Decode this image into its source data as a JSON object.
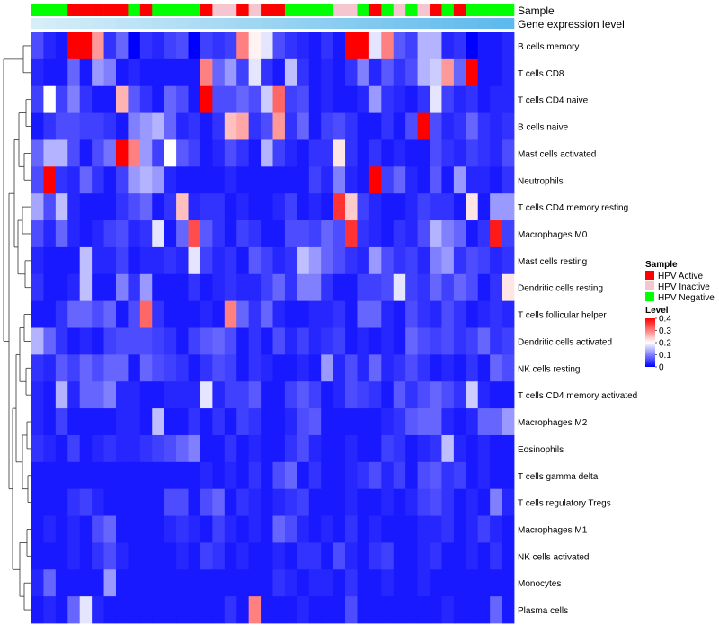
{
  "chart_data": {
    "type": "heatmap",
    "annotation_labels": {
      "sample": "Sample",
      "expression": "Gene expression level"
    },
    "sample_annotation": [
      "N",
      "N",
      "N",
      "A",
      "A",
      "A",
      "A",
      "A",
      "N",
      "A",
      "N",
      "N",
      "N",
      "N",
      "A",
      "I",
      "I",
      "A",
      "I",
      "A",
      "A",
      "N",
      "N",
      "N",
      "N",
      "I",
      "I",
      "N",
      "A",
      "N",
      "I",
      "N",
      "I",
      "A",
      "N",
      "A",
      "N",
      "N",
      "N",
      "N"
    ],
    "rows": [
      "B cells memory",
      "T cells CD8",
      "T cells CD4 naive",
      "B cells naive",
      "Mast cells activated",
      "Neutrophils",
      "T cells CD4 memory resting",
      "Macrophages M0",
      "Mast cells resting",
      "Dendritic cells resting",
      "T cells follicular helper",
      "Dendritic cells activated",
      "NK cells resting",
      "T cells CD4 memory activated",
      "Macrophages M2",
      "Eosinophils",
      "T cells gamma delta",
      "T cells regulatory  Tregs",
      "Macrophages M1",
      "NK cells activated",
      "Monocytes",
      "Plasma cells"
    ],
    "values": [
      [
        0.06,
        0.03,
        0.02,
        0.4,
        0.4,
        0.28,
        0.04,
        0.08,
        0.0,
        0.04,
        0.03,
        0.05,
        0.06,
        0.0,
        0.05,
        0.04,
        0.05,
        0.3,
        0.21,
        0.18,
        0.06,
        0.04,
        0.03,
        0.02,
        0.04,
        0.02,
        0.4,
        0.4,
        0.18,
        0.3,
        0.07,
        0.05,
        0.14,
        0.14,
        0.03,
        0.04,
        0.0,
        0.02,
        0.02,
        0.03
      ],
      [
        0.03,
        0.02,
        0.02,
        0.08,
        0.02,
        0.12,
        0.1,
        0.02,
        0.03,
        0.02,
        0.02,
        0.02,
        0.02,
        0.02,
        0.3,
        0.08,
        0.12,
        0.05,
        0.18,
        0.04,
        0.02,
        0.15,
        0.04,
        0.02,
        0.03,
        0.02,
        0.04,
        0.1,
        0.03,
        0.07,
        0.04,
        0.06,
        0.14,
        0.16,
        0.28,
        0.08,
        0.4,
        0.02,
        0.02,
        0.03
      ],
      [
        0.05,
        0.2,
        0.05,
        0.1,
        0.04,
        0.02,
        0.02,
        0.26,
        0.07,
        0.04,
        0.02,
        0.08,
        0.06,
        0.02,
        0.4,
        0.06,
        0.06,
        0.08,
        0.06,
        0.16,
        0.32,
        0.05,
        0.06,
        0.02,
        0.03,
        0.02,
        0.02,
        0.03,
        0.12,
        0.04,
        0.03,
        0.02,
        0.04,
        0.18,
        0.05,
        0.03,
        0.04,
        0.02,
        0.03,
        0.03
      ],
      [
        0.02,
        0.04,
        0.06,
        0.06,
        0.05,
        0.05,
        0.04,
        0.02,
        0.1,
        0.12,
        0.14,
        0.08,
        0.03,
        0.04,
        0.02,
        0.04,
        0.25,
        0.27,
        0.04,
        0.06,
        0.28,
        0.04,
        0.08,
        0.02,
        0.05,
        0.06,
        0.04,
        0.02,
        0.02,
        0.04,
        0.02,
        0.06,
        0.4,
        0.06,
        0.03,
        0.04,
        0.08,
        0.04,
        0.03,
        0.04
      ],
      [
        0.08,
        0.14,
        0.14,
        0.06,
        0.02,
        0.06,
        0.09,
        0.4,
        0.3,
        0.12,
        0.05,
        0.2,
        0.07,
        0.05,
        0.02,
        0.03,
        0.06,
        0.04,
        0.02,
        0.14,
        0.05,
        0.03,
        0.02,
        0.04,
        0.04,
        0.22,
        0.04,
        0.02,
        0.04,
        0.02,
        0.03,
        0.02,
        0.02,
        0.06,
        0.04,
        0.03,
        0.05,
        0.04,
        0.03,
        0.06
      ],
      [
        0.06,
        0.4,
        0.04,
        0.03,
        0.08,
        0.04,
        0.02,
        0.05,
        0.12,
        0.14,
        0.12,
        0.03,
        0.02,
        0.02,
        0.02,
        0.02,
        0.03,
        0.02,
        0.02,
        0.02,
        0.02,
        0.02,
        0.02,
        0.05,
        0.03,
        0.1,
        0.03,
        0.02,
        0.4,
        0.05,
        0.08,
        0.03,
        0.02,
        0.07,
        0.02,
        0.12,
        0.03,
        0.03,
        0.02,
        0.04
      ],
      [
        0.13,
        0.06,
        0.15,
        0.03,
        0.02,
        0.02,
        0.02,
        0.04,
        0.06,
        0.08,
        0.02,
        0.04,
        0.25,
        0.03,
        0.04,
        0.04,
        0.02,
        0.03,
        0.02,
        0.02,
        0.03,
        0.05,
        0.02,
        0.03,
        0.02,
        0.36,
        0.24,
        0.05,
        0.03,
        0.02,
        0.02,
        0.03,
        0.05,
        0.04,
        0.04,
        0.02,
        0.22,
        0.02,
        0.12,
        0.12
      ],
      [
        0.06,
        0.03,
        0.08,
        0.03,
        0.02,
        0.03,
        0.05,
        0.06,
        0.03,
        0.04,
        0.18,
        0.02,
        0.08,
        0.34,
        0.07,
        0.04,
        0.02,
        0.05,
        0.04,
        0.02,
        0.02,
        0.06,
        0.06,
        0.05,
        0.08,
        0.06,
        0.36,
        0.04,
        0.03,
        0.02,
        0.04,
        0.03,
        0.06,
        0.14,
        0.1,
        0.08,
        0.02,
        0.04,
        0.38,
        0.05
      ],
      [
        0.03,
        0.02,
        0.02,
        0.02,
        0.15,
        0.03,
        0.03,
        0.05,
        0.02,
        0.03,
        0.03,
        0.04,
        0.03,
        0.18,
        0.05,
        0.03,
        0.04,
        0.02,
        0.07,
        0.05,
        0.03,
        0.04,
        0.15,
        0.12,
        0.08,
        0.06,
        0.04,
        0.03,
        0.12,
        0.06,
        0.04,
        0.05,
        0.03,
        0.1,
        0.12,
        0.04,
        0.06,
        0.05,
        0.03,
        0.04
      ],
      [
        0.04,
        0.02,
        0.02,
        0.03,
        0.15,
        0.02,
        0.02,
        0.1,
        0.04,
        0.12,
        0.02,
        0.02,
        0.02,
        0.04,
        0.02,
        0.03,
        0.04,
        0.03,
        0.03,
        0.05,
        0.08,
        0.04,
        0.1,
        0.1,
        0.04,
        0.02,
        0.02,
        0.05,
        0.05,
        0.06,
        0.18,
        0.05,
        0.04,
        0.08,
        0.05,
        0.08,
        0.06,
        0.02,
        0.04,
        0.22
      ],
      [
        0.02,
        0.02,
        0.04,
        0.08,
        0.08,
        0.06,
        0.08,
        0.02,
        0.06,
        0.32,
        0.04,
        0.02,
        0.02,
        0.02,
        0.03,
        0.02,
        0.3,
        0.08,
        0.04,
        0.08,
        0.03,
        0.02,
        0.02,
        0.03,
        0.03,
        0.04,
        0.02,
        0.08,
        0.08,
        0.03,
        0.02,
        0.06,
        0.04,
        0.03,
        0.06,
        0.04,
        0.02,
        0.03,
        0.04,
        0.03
      ],
      [
        0.14,
        0.08,
        0.04,
        0.02,
        0.03,
        0.02,
        0.05,
        0.06,
        0.06,
        0.06,
        0.05,
        0.04,
        0.02,
        0.05,
        0.07,
        0.08,
        0.06,
        0.02,
        0.04,
        0.02,
        0.06,
        0.03,
        0.05,
        0.03,
        0.04,
        0.05,
        0.02,
        0.03,
        0.02,
        0.03,
        0.02,
        0.08,
        0.06,
        0.05,
        0.06,
        0.04,
        0.05,
        0.08,
        0.04,
        0.05
      ],
      [
        0.04,
        0.03,
        0.07,
        0.05,
        0.08,
        0.06,
        0.08,
        0.08,
        0.02,
        0.08,
        0.06,
        0.05,
        0.04,
        0.02,
        0.04,
        0.06,
        0.05,
        0.02,
        0.04,
        0.03,
        0.02,
        0.02,
        0.03,
        0.02,
        0.12,
        0.03,
        0.06,
        0.03,
        0.08,
        0.03,
        0.04,
        0.06,
        0.04,
        0.02,
        0.03,
        0.02,
        0.04,
        0.02,
        0.08,
        0.06
      ],
      [
        0.03,
        0.02,
        0.14,
        0.03,
        0.08,
        0.08,
        0.1,
        0.03,
        0.03,
        0.02,
        0.02,
        0.03,
        0.03,
        0.03,
        0.18,
        0.03,
        0.05,
        0.05,
        0.07,
        0.02,
        0.02,
        0.05,
        0.07,
        0.05,
        0.02,
        0.03,
        0.06,
        0.05,
        0.04,
        0.02,
        0.07,
        0.04,
        0.06,
        0.08,
        0.06,
        0.04,
        0.16,
        0.03,
        0.02,
        0.02
      ],
      [
        0.03,
        0.02,
        0.05,
        0.02,
        0.02,
        0.02,
        0.02,
        0.03,
        0.03,
        0.02,
        0.15,
        0.02,
        0.02,
        0.04,
        0.02,
        0.04,
        0.02,
        0.05,
        0.04,
        0.02,
        0.02,
        0.03,
        0.06,
        0.07,
        0.02,
        0.02,
        0.02,
        0.02,
        0.02,
        0.03,
        0.04,
        0.07,
        0.08,
        0.08,
        0.03,
        0.02,
        0.03,
        0.08,
        0.08,
        0.12
      ],
      [
        0.04,
        0.03,
        0.02,
        0.05,
        0.02,
        0.03,
        0.04,
        0.03,
        0.03,
        0.04,
        0.05,
        0.06,
        0.08,
        0.1,
        0.02,
        0.02,
        0.04,
        0.02,
        0.03,
        0.02,
        0.02,
        0.04,
        0.06,
        0.03,
        0.02,
        0.02,
        0.03,
        0.02,
        0.02,
        0.05,
        0.04,
        0.02,
        0.03,
        0.04,
        0.15,
        0.03,
        0.02,
        0.03,
        0.02,
        0.02
      ],
      [
        0.02,
        0.02,
        0.02,
        0.02,
        0.02,
        0.02,
        0.02,
        0.02,
        0.02,
        0.02,
        0.02,
        0.02,
        0.02,
        0.02,
        0.03,
        0.02,
        0.03,
        0.02,
        0.04,
        0.02,
        0.06,
        0.08,
        0.02,
        0.04,
        0.02,
        0.02,
        0.03,
        0.04,
        0.06,
        0.03,
        0.05,
        0.02,
        0.06,
        0.07,
        0.04,
        0.05,
        0.02,
        0.03,
        0.02,
        0.02
      ],
      [
        0.02,
        0.02,
        0.02,
        0.04,
        0.05,
        0.03,
        0.02,
        0.02,
        0.02,
        0.02,
        0.02,
        0.06,
        0.06,
        0.02,
        0.06,
        0.08,
        0.02,
        0.04,
        0.03,
        0.02,
        0.03,
        0.04,
        0.05,
        0.02,
        0.02,
        0.02,
        0.03,
        0.02,
        0.02,
        0.03,
        0.02,
        0.03,
        0.05,
        0.06,
        0.04,
        0.02,
        0.03,
        0.02,
        0.1,
        0.03
      ],
      [
        0.02,
        0.03,
        0.02,
        0.03,
        0.02,
        0.06,
        0.08,
        0.02,
        0.02,
        0.02,
        0.02,
        0.03,
        0.04,
        0.03,
        0.02,
        0.05,
        0.03,
        0.02,
        0.03,
        0.02,
        0.08,
        0.06,
        0.03,
        0.02,
        0.03,
        0.02,
        0.04,
        0.02,
        0.03,
        0.02,
        0.02,
        0.02,
        0.03,
        0.03,
        0.04,
        0.02,
        0.03,
        0.05,
        0.03,
        0.02
      ],
      [
        0.02,
        0.02,
        0.02,
        0.03,
        0.02,
        0.04,
        0.06,
        0.03,
        0.02,
        0.02,
        0.02,
        0.02,
        0.03,
        0.02,
        0.05,
        0.04,
        0.02,
        0.03,
        0.02,
        0.02,
        0.03,
        0.02,
        0.04,
        0.04,
        0.02,
        0.06,
        0.03,
        0.02,
        0.04,
        0.05,
        0.02,
        0.02,
        0.03,
        0.04,
        0.02,
        0.02,
        0.03,
        0.02,
        0.04,
        0.02
      ],
      [
        0.03,
        0.08,
        0.02,
        0.02,
        0.02,
        0.02,
        0.12,
        0.02,
        0.02,
        0.02,
        0.02,
        0.02,
        0.02,
        0.02,
        0.02,
        0.02,
        0.02,
        0.02,
        0.02,
        0.02,
        0.04,
        0.03,
        0.02,
        0.03,
        0.03,
        0.02,
        0.04,
        0.02,
        0.02,
        0.03,
        0.02,
        0.02,
        0.03,
        0.02,
        0.02,
        0.02,
        0.02,
        0.02,
        0.02,
        0.02
      ],
      [
        0.02,
        0.03,
        0.02,
        0.08,
        0.18,
        0.03,
        0.02,
        0.02,
        0.02,
        0.02,
        0.02,
        0.02,
        0.02,
        0.02,
        0.02,
        0.02,
        0.04,
        0.02,
        0.3,
        0.02,
        0.02,
        0.02,
        0.03,
        0.02,
        0.02,
        0.02,
        0.06,
        0.02,
        0.02,
        0.02,
        0.02,
        0.02,
        0.02,
        0.02,
        0.03,
        0.02,
        0.02,
        0.02,
        0.08,
        0.02
      ]
    ],
    "color_scale": {
      "low": "#0000FF",
      "mid": "#FFFFFF",
      "high": "#FF0000",
      "midpoint": 0.2,
      "min": 0,
      "max": 0.4
    },
    "expression_bar_colors": [
      "#D6EEF8",
      "#5EB9EC"
    ],
    "legend": {
      "sample_title": "Sample",
      "sample_items": [
        {
          "label": "HPV Active",
          "color": "#FF0000"
        },
        {
          "label": "HPV Inactive",
          "color": "#F6C6D0"
        },
        {
          "label": "HPV Negative",
          "color": "#00FF00"
        }
      ],
      "level_title": "Level",
      "level_ticks": [
        "0.4",
        "0.3",
        "0.2",
        "0.1",
        "0"
      ],
      "level_tick_values": [
        0.4,
        0.3,
        0.2,
        0.1,
        0
      ]
    }
  }
}
